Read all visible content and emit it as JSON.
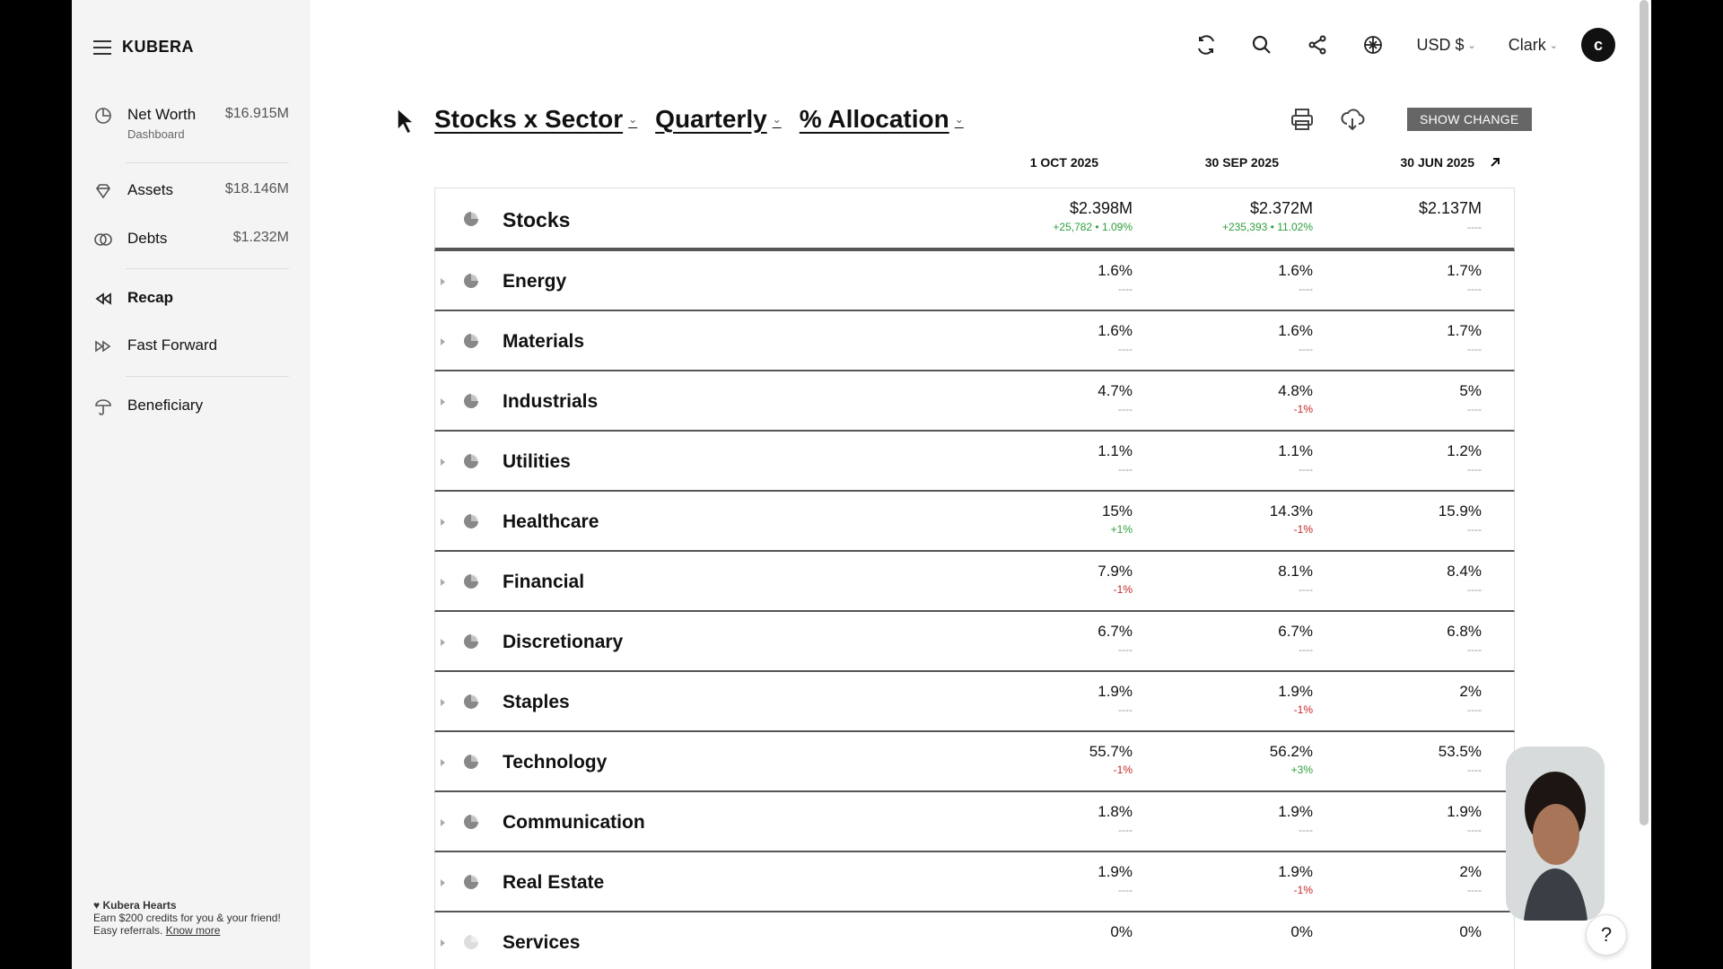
{
  "brand": {
    "name": "KUBERA"
  },
  "sidebar": {
    "items": [
      {
        "label": "Net Worth",
        "sub": "Dashboard",
        "value": "$16.915M",
        "icon": "pie-chart-icon"
      },
      {
        "label": "Assets",
        "value": "$18.146M",
        "icon": "diamond-icon"
      },
      {
        "label": "Debts",
        "value": "$1.232M",
        "icon": "rings-icon"
      },
      {
        "label": "Recap",
        "icon": "rewind-icon"
      },
      {
        "label": "Fast Forward",
        "icon": "fast-forward-icon"
      },
      {
        "label": "Beneficiary",
        "icon": "umbrella-icon"
      }
    ],
    "hearts": {
      "title": "♥ Kubera Hearts",
      "text": "Earn $200 credits for you & your friend! Easy referrals.",
      "link": "Know more"
    }
  },
  "topbar": {
    "currency": "USD $",
    "user": "Clark",
    "avatar": "c"
  },
  "filters": {
    "view": "Stocks x Sector",
    "period": "Quarterly",
    "mode": "% Allocation"
  },
  "toolbar": {
    "show_change": "SHOW CHANGE"
  },
  "columns": [
    "1 OCT 2025",
    "30 SEP 2025",
    "30 JUN 2025"
  ],
  "rows": [
    {
      "name": "Stocks",
      "cells": [
        {
          "v": "$2.398M",
          "c": "+25,782 • 1.09%",
          "t": "pos"
        },
        {
          "v": "$2.372M",
          "c": "+235,393 • 11.02%",
          "t": "pos"
        },
        {
          "v": "$2.137M",
          "c": "----",
          "t": "none"
        }
      ]
    },
    {
      "name": "Energy",
      "cells": [
        {
          "v": "1.6%",
          "c": "----",
          "t": "none"
        },
        {
          "v": "1.6%",
          "c": "----",
          "t": "none"
        },
        {
          "v": "1.7%",
          "c": "----",
          "t": "none"
        }
      ]
    },
    {
      "name": "Materials",
      "cells": [
        {
          "v": "1.6%",
          "c": "----",
          "t": "none"
        },
        {
          "v": "1.6%",
          "c": "----",
          "t": "none"
        },
        {
          "v": "1.7%",
          "c": "----",
          "t": "none"
        }
      ]
    },
    {
      "name": "Industrials",
      "cells": [
        {
          "v": "4.7%",
          "c": "----",
          "t": "none"
        },
        {
          "v": "4.8%",
          "c": "-1%",
          "t": "neg"
        },
        {
          "v": "5%",
          "c": "----",
          "t": "none"
        }
      ]
    },
    {
      "name": "Utilities",
      "cells": [
        {
          "v": "1.1%",
          "c": "----",
          "t": "none"
        },
        {
          "v": "1.1%",
          "c": "----",
          "t": "none"
        },
        {
          "v": "1.2%",
          "c": "----",
          "t": "none"
        }
      ]
    },
    {
      "name": "Healthcare",
      "cells": [
        {
          "v": "15%",
          "c": "+1%",
          "t": "pos"
        },
        {
          "v": "14.3%",
          "c": "-1%",
          "t": "neg"
        },
        {
          "v": "15.9%",
          "c": "----",
          "t": "none"
        }
      ]
    },
    {
      "name": "Financial",
      "cells": [
        {
          "v": "7.9%",
          "c": "-1%",
          "t": "neg"
        },
        {
          "v": "8.1%",
          "c": "----",
          "t": "none"
        },
        {
          "v": "8.4%",
          "c": "----",
          "t": "none"
        }
      ]
    },
    {
      "name": "Discretionary",
      "cells": [
        {
          "v": "6.7%",
          "c": "----",
          "t": "none"
        },
        {
          "v": "6.7%",
          "c": "----",
          "t": "none"
        },
        {
          "v": "6.8%",
          "c": "----",
          "t": "none"
        }
      ]
    },
    {
      "name": "Staples",
      "cells": [
        {
          "v": "1.9%",
          "c": "----",
          "t": "none"
        },
        {
          "v": "1.9%",
          "c": "-1%",
          "t": "neg"
        },
        {
          "v": "2%",
          "c": "----",
          "t": "none"
        }
      ]
    },
    {
      "name": "Technology",
      "cells": [
        {
          "v": "55.7%",
          "c": "-1%",
          "t": "neg"
        },
        {
          "v": "56.2%",
          "c": "+3%",
          "t": "pos"
        },
        {
          "v": "53.5%",
          "c": "----",
          "t": "none"
        }
      ]
    },
    {
      "name": "Communication",
      "cells": [
        {
          "v": "1.8%",
          "c": "----",
          "t": "none"
        },
        {
          "v": "1.9%",
          "c": "----",
          "t": "none"
        },
        {
          "v": "1.9%",
          "c": "----",
          "t": "none"
        }
      ]
    },
    {
      "name": "Real Estate",
      "cells": [
        {
          "v": "1.9%",
          "c": "----",
          "t": "none"
        },
        {
          "v": "1.9%",
          "c": "-1%",
          "t": "neg"
        },
        {
          "v": "2%",
          "c": "----",
          "t": "none"
        }
      ]
    },
    {
      "name": "Services",
      "cells": [
        {
          "v": "0%",
          "c": "",
          "t": "none"
        },
        {
          "v": "0%",
          "c": "",
          "t": "none"
        },
        {
          "v": "0%",
          "c": "",
          "t": "none"
        }
      ]
    }
  ],
  "help": {
    "label": "?"
  }
}
